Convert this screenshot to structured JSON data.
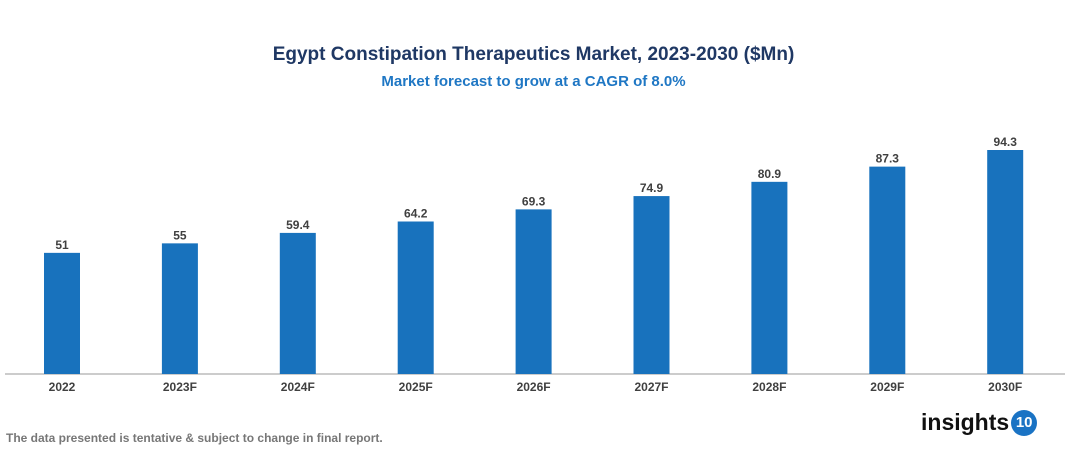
{
  "chart_data": {
    "type": "bar",
    "title": "Egypt Constipation Therapeutics Market, 2023-2030 ($Mn)",
    "subtitle": "Market forecast to grow at a CAGR of 8.0%",
    "categories": [
      "2022",
      "2023F",
      "2024F",
      "2025F",
      "2026F",
      "2027F",
      "2028F",
      "2029F",
      "2030F"
    ],
    "values": [
      51,
      55,
      59.4,
      64.2,
      69.3,
      74.9,
      80.9,
      87.3,
      94.3
    ],
    "value_labels": [
      "51",
      "55",
      "59.4",
      "64.2",
      "69.3",
      "74.9",
      "80.9",
      "87.3",
      "94.3"
    ],
    "xlabel": "",
    "ylabel": "",
    "ylim": [
      0,
      100
    ],
    "grid": false,
    "legend": "none",
    "bar_color": "#1872bd"
  },
  "footer": {
    "note": "The data presented is tentative & subject to change in final report."
  },
  "logo": {
    "text": "insights",
    "badge": "10"
  }
}
